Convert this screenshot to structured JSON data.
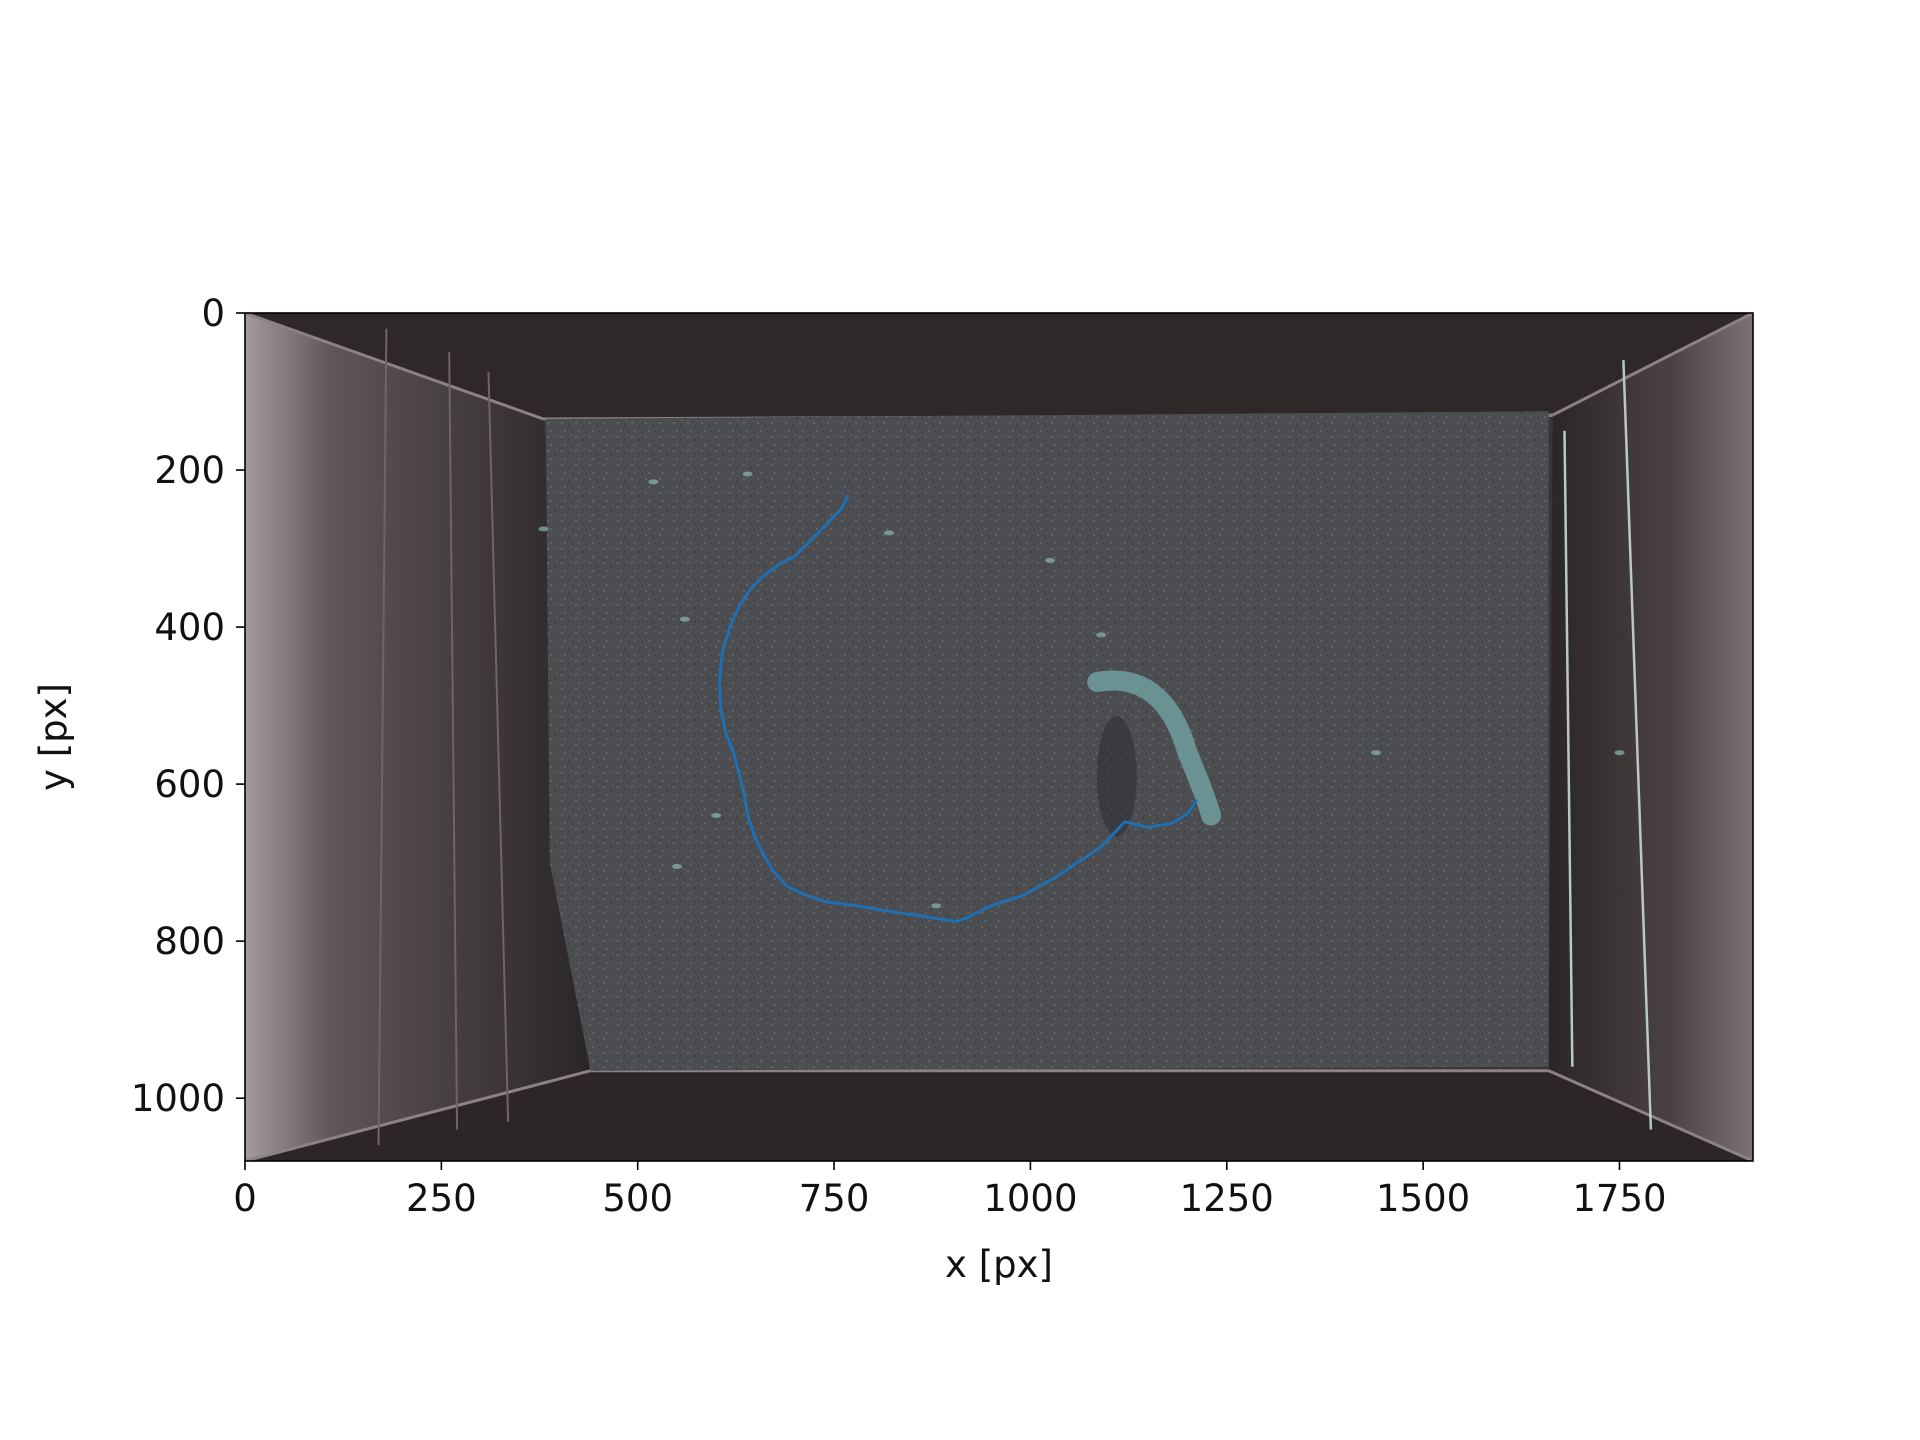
{
  "chart_data": {
    "type": "line",
    "title": "",
    "xlabel": "x [px]",
    "ylabel": "y [px]",
    "xlim": [
      0,
      1920
    ],
    "ylim": [
      1080,
      0
    ],
    "y_inverted": true,
    "grid": false,
    "legend": "none",
    "background": "camera frame of a sand-floored tank viewed from above, with a fish near the end of the track",
    "x_ticks": [
      0,
      250,
      500,
      750,
      1000,
      1250,
      1500,
      1750
    ],
    "x_tick_labels": [
      "0",
      "250",
      "500",
      "750",
      "1000",
      "1250",
      "1500",
      "1750"
    ],
    "y_ticks": [
      0,
      200,
      400,
      600,
      800,
      1000
    ],
    "y_tick_labels": [
      "0",
      "200",
      "400",
      "600",
      "800",
      "1000"
    ],
    "series": [
      {
        "color": "#1f6fb4",
        "x": [
          768,
          760,
          740,
          718,
          700,
          680,
          660,
          645,
          630,
          618,
          608,
          604,
          606,
          612,
          622,
          630,
          636,
          640,
          648,
          660,
          672,
          690,
          710,
          740,
          780,
          820,
          860,
          905,
          920,
          950,
          990,
          1030,
          1060,
          1090,
          1120,
          1150,
          1180,
          1200,
          1212
        ],
        "y": [
          232,
          248,
          270,
          292,
          310,
          320,
          335,
          350,
          372,
          398,
          430,
          470,
          505,
          535,
          560,
          590,
          615,
          640,
          665,
          690,
          710,
          730,
          740,
          750,
          755,
          762,
          768,
          775,
          770,
          755,
          742,
          720,
          700,
          680,
          648,
          655,
          650,
          638,
          620
        ]
      }
    ]
  },
  "colors": {
    "tank_wall": "#3a3435",
    "sand": "#4a4c4f",
    "fish": "#6f9a9a",
    "track": "#1f6fb4"
  }
}
